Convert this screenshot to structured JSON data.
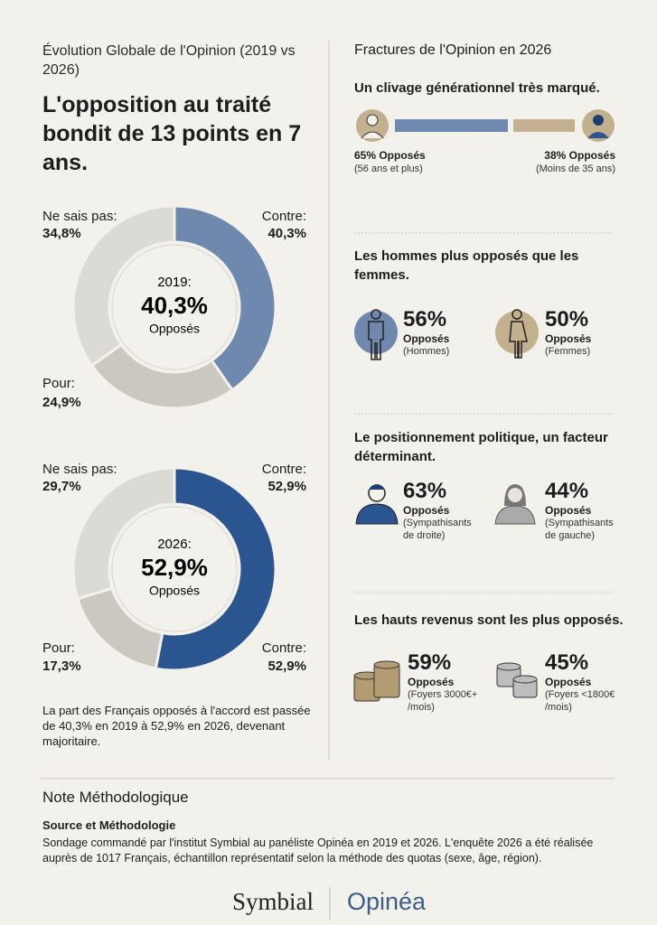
{
  "left": {
    "kicker": "Évolution Globale de l'Opinion (2019 vs 2026)",
    "headline": "L'opposition au traité bondit de 13 points en 7 ans.",
    "caption": "La part des Français opposés à l'accord est passée de 40,3% en 2019 à 52,9% en 2026, devenant majoritaire."
  },
  "chart_data": [
    {
      "type": "donut",
      "center_title": "2019:",
      "center_caption": "Opposés",
      "categories": [
        "Contre:",
        "Pour:",
        "Ne sais pas:"
      ],
      "values": [
        40.3,
        24.9,
        34.8
      ],
      "value_labels": [
        "40,3%",
        "24,9%",
        "34,8%"
      ],
      "colors": [
        "#6f88ad",
        "#cbc8c0",
        "#dcdad5"
      ]
    },
    {
      "type": "donut",
      "center_title": "2026:",
      "center_caption": "Opposés",
      "categories": [
        "Contre:",
        "Pour:",
        "Ne sais pas:"
      ],
      "values": [
        52.9,
        17.3,
        29.7
      ],
      "value_labels": [
        "52,9%",
        "17,3%",
        "29,7%"
      ],
      "colors": [
        "#2b5591",
        "#cbc8c0",
        "#dcdad5"
      ]
    }
  ],
  "right": {
    "title": "Fractures de l'Opinion en 2026",
    "sections": [
      {
        "heading": "Un clivage générationnel très marqué.",
        "items": [
          {
            "value": "65% Opposés",
            "detail": "(56 ans et plus)"
          },
          {
            "value": "38% Opposés",
            "detail": "(Moins de 35 ans)"
          }
        ]
      },
      {
        "heading": "Les hommes plus opposés que les femmes.",
        "items": [
          {
            "value": "56%",
            "label": "Opposés",
            "detail": "(Hommes)"
          },
          {
            "value": "50%",
            "label": "Opposés",
            "detail": "(Femmes)"
          }
        ]
      },
      {
        "heading": "Le positionnement politique, un facteur déterminant.",
        "items": [
          {
            "value": "63%",
            "label": "Opposés",
            "detail": "(Sympathisants de droite)"
          },
          {
            "value": "44%",
            "label": "Opposés",
            "detail": "(Sympathisants de gauche)"
          }
        ]
      },
      {
        "heading": "Les hauts revenus sont les plus opposés.",
        "items": [
          {
            "value": "59%",
            "label": "Opposés",
            "detail": "(Foyers 3000€+ /mois)"
          },
          {
            "value": "45%",
            "label": "Opposés",
            "detail": "(Foyers <1800€ /mois)"
          }
        ]
      }
    ]
  },
  "note": {
    "title": "Note Méthodologique",
    "subtitle": "Source et Méthodologie",
    "text": "Sondage commandé par l'institut Symbial au panéliste Opinéa en 2019 et 2026. L'enquête 2026 a été réalisée auprès de 1017 Français, échantillon représentatif selon la méthode des quotas (sexe, âge, région)."
  },
  "footer": {
    "brands": [
      "Symbial",
      "Opinéa"
    ]
  }
}
